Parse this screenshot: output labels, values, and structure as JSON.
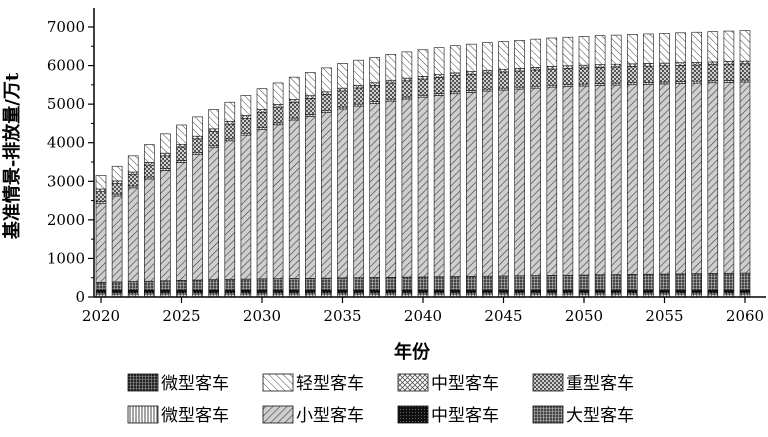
{
  "chart_data": {
    "type": "bar",
    "stacked": true,
    "title": "",
    "xlabel": "年份",
    "ylabel": "基准情景-排放量/万t",
    "xlim": [
      2020,
      2060
    ],
    "ylim": [
      0,
      7000
    ],
    "x_ticks": [
      "2020",
      "2025",
      "2030",
      "2035",
      "2040",
      "2045",
      "2050",
      "2055",
      "2060"
    ],
    "y_ticks": [
      "0",
      "1000",
      "2000",
      "3000",
      "4000",
      "5000",
      "6000",
      "7000"
    ],
    "grid": false,
    "legend_position": "bottom",
    "categories": [
      2020,
      2021,
      2022,
      2023,
      2024,
      2025,
      2026,
      2027,
      2028,
      2029,
      2030,
      2031,
      2032,
      2033,
      2034,
      2035,
      2036,
      2037,
      2038,
      2039,
      2040,
      2041,
      2042,
      2043,
      2044,
      2045,
      2046,
      2047,
      2048,
      2049,
      2050,
      2051,
      2052,
      2053,
      2054,
      2055,
      2056,
      2057,
      2058,
      2059,
      2060
    ],
    "series": [
      {
        "name": "微型客车",
        "pattern": "smallgrid",
        "values": [
          100,
          100,
          100,
          100,
          100,
          100,
          100,
          100,
          100,
          100,
          100,
          100,
          100,
          100,
          100,
          100,
          100,
          100,
          100,
          100,
          100,
          100,
          100,
          100,
          100,
          100,
          100,
          100,
          100,
          100,
          100,
          100,
          100,
          100,
          100,
          100,
          100,
          100,
          100,
          100,
          100
        ]
      },
      {
        "name": "中型客车",
        "pattern": "solidblack",
        "values": [
          80,
          80,
          80,
          80,
          80,
          80,
          80,
          80,
          80,
          80,
          80,
          80,
          80,
          80,
          80,
          80,
          80,
          80,
          80,
          80,
          80,
          80,
          80,
          80,
          80,
          80,
          80,
          80,
          80,
          80,
          80,
          80,
          80,
          80,
          80,
          80,
          80,
          80,
          80,
          80,
          80
        ]
      },
      {
        "name": "大型客车",
        "pattern": "darkgrid",
        "values": [
          200,
          210,
          220,
          230,
          240,
          250,
          260,
          270,
          280,
          285,
          290,
          295,
          300,
          305,
          310,
          315,
          320,
          325,
          330,
          335,
          340,
          345,
          350,
          355,
          360,
          365,
          370,
          375,
          380,
          385,
          390,
          395,
          400,
          405,
          410,
          415,
          420,
          425,
          430,
          435,
          440
        ]
      },
      {
        "name": "小型客车",
        "pattern": "diag",
        "values": [
          2050,
          2230,
          2430,
          2650,
          2860,
          3060,
          3250,
          3420,
          3590,
          3730,
          3870,
          3990,
          4110,
          4200,
          4290,
          4380,
          4450,
          4510,
          4570,
          4620,
          4660,
          4700,
          4740,
          4770,
          4800,
          4820,
          4840,
          4860,
          4880,
          4890,
          4900,
          4910,
          4915,
          4920,
          4925,
          4930,
          4935,
          4940,
          4945,
          4950,
          4955
        ]
      },
      {
        "name": "微型客车",
        "pattern": "vertical",
        "values": [
          50,
          50,
          50,
          50,
          50,
          50,
          50,
          50,
          50,
          50,
          50,
          50,
          50,
          50,
          50,
          50,
          50,
          50,
          50,
          50,
          50,
          50,
          50,
          50,
          50,
          50,
          50,
          50,
          50,
          50,
          50,
          50,
          50,
          50,
          50,
          50,
          50,
          50,
          50,
          50,
          50
        ]
      },
      {
        "name": "重型客车",
        "pattern": "checker",
        "values": [
          250,
          270,
          290,
          310,
          330,
          350,
          360,
          370,
          380,
          390,
          400,
          405,
          410,
          415,
          420,
          420,
          420,
          420,
          420,
          420,
          420,
          420,
          420,
          420,
          420,
          420,
          420,
          420,
          420,
          420,
          420,
          420,
          420,
          420,
          420,
          420,
          420,
          420,
          420,
          420,
          420
        ]
      },
      {
        "name": "中型客车",
        "pattern": "crosshatch",
        "values": [
          70,
          70,
          70,
          70,
          70,
          70,
          70,
          70,
          70,
          70,
          70,
          70,
          70,
          70,
          70,
          70,
          70,
          70,
          70,
          70,
          70,
          70,
          70,
          70,
          70,
          70,
          70,
          70,
          70,
          70,
          70,
          70,
          70,
          70,
          70,
          70,
          70,
          70,
          70,
          70,
          70
        ]
      },
      {
        "name": "轻型客车",
        "pattern": "backdiag",
        "values": [
          350,
          380,
          420,
          460,
          500,
          500,
          500,
          500,
          500,
          520,
          540,
          560,
          580,
          600,
          620,
          640,
          650,
          660,
          670,
          680,
          690,
          700,
          705,
          710,
          715,
          720,
          725,
          730,
          735,
          740,
          745,
          750,
          755,
          760,
          765,
          770,
          775,
          780,
          785,
          790,
          795
        ]
      }
    ],
    "legend": [
      {
        "label": "微型客车",
        "pattern": "darkgrid2"
      },
      {
        "label": "轻型客车",
        "pattern": "backdiag"
      },
      {
        "label": "中型客车",
        "pattern": "crosshatch"
      },
      {
        "label": "重型客车",
        "pattern": "checker"
      },
      {
        "label": "微型客车",
        "pattern": "vertical"
      },
      {
        "label": "小型客车",
        "pattern": "diag"
      },
      {
        "label": "中型客车",
        "pattern": "solidblack"
      },
      {
        "label": "大型客车",
        "pattern": "darkgrid"
      }
    ]
  }
}
